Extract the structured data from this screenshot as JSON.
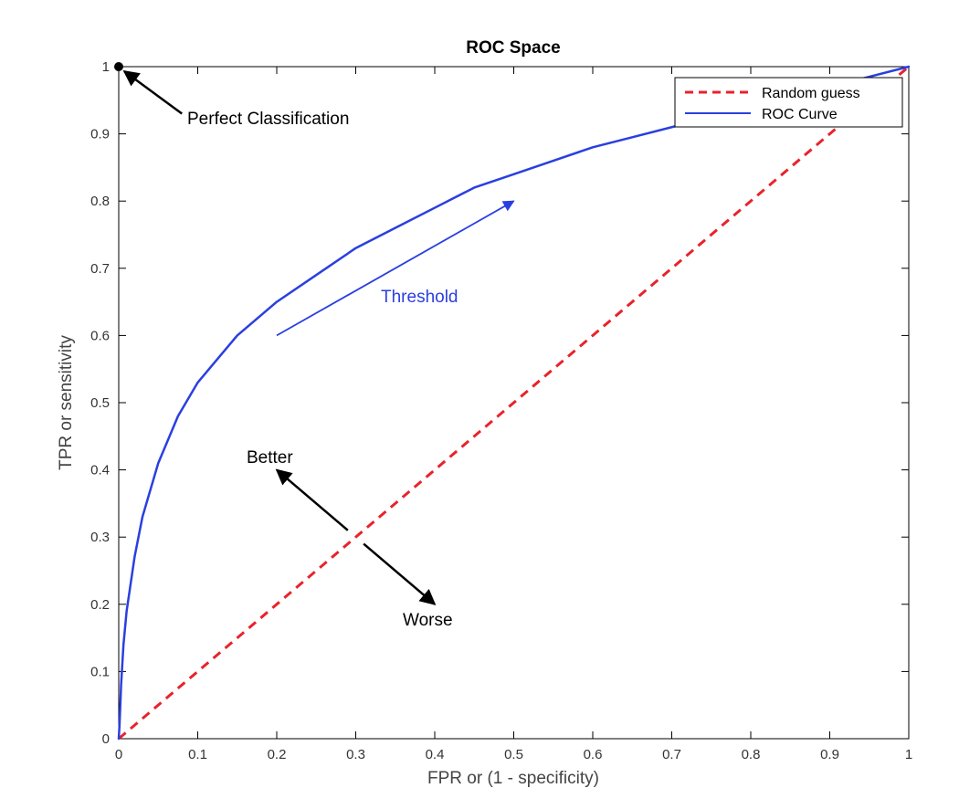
{
  "chart_data": {
    "type": "line",
    "title": "ROC Space",
    "xlabel": "FPR or (1 - specificity)",
    "ylabel": "TPR or sensitivity",
    "xlim": [
      0,
      1
    ],
    "ylim": [
      0,
      1
    ],
    "xticks": [
      "0",
      "0.1",
      "0.2",
      "0.3",
      "0.4",
      "0.5",
      "0.6",
      "0.7",
      "0.8",
      "0.9",
      "1"
    ],
    "yticks": [
      "0",
      "0.1",
      "0.2",
      "0.3",
      "0.4",
      "0.5",
      "0.6",
      "0.7",
      "0.8",
      "0.9",
      "1"
    ],
    "grid": false,
    "legend_position": "top-right",
    "series": [
      {
        "name": "Random guess",
        "style": "dashed",
        "color": "#e8232b",
        "x": [
          0,
          1
        ],
        "y": [
          0,
          1
        ]
      },
      {
        "name": "ROC Curve",
        "style": "solid",
        "color": "#2a3fe0",
        "x": [
          0,
          0.001,
          0.003,
          0.006,
          0.01,
          0.02,
          0.03,
          0.05,
          0.075,
          0.1,
          0.15,
          0.2,
          0.25,
          0.3,
          0.35,
          0.4,
          0.45,
          0.5,
          0.55,
          0.6,
          0.65,
          0.7,
          0.75,
          0.8,
          0.85,
          0.9,
          0.95,
          1.0
        ],
        "y": [
          0,
          0.02,
          0.08,
          0.14,
          0.19,
          0.27,
          0.33,
          0.41,
          0.48,
          0.53,
          0.6,
          0.65,
          0.69,
          0.73,
          0.76,
          0.79,
          0.82,
          0.84,
          0.86,
          0.88,
          0.895,
          0.91,
          0.925,
          0.94,
          0.955,
          0.97,
          0.985,
          1.0
        ]
      }
    ],
    "annotations": {
      "perfect": {
        "text": "Perfect Classification",
        "point": [
          0,
          1
        ],
        "arrow_from": [
          0.08,
          0.93
        ]
      },
      "threshold": {
        "text": "Threshold",
        "arrow_from": [
          0.2,
          0.6
        ],
        "arrow_to": [
          0.5,
          0.8
        ],
        "color": "#2a3fe0"
      },
      "better": {
        "text": "Better",
        "arrow_from": [
          0.29,
          0.31
        ],
        "arrow_to": [
          0.2,
          0.4
        ]
      },
      "worse": {
        "text": "Worse",
        "arrow_from": [
          0.31,
          0.29
        ],
        "arrow_to": [
          0.4,
          0.2
        ]
      }
    }
  }
}
